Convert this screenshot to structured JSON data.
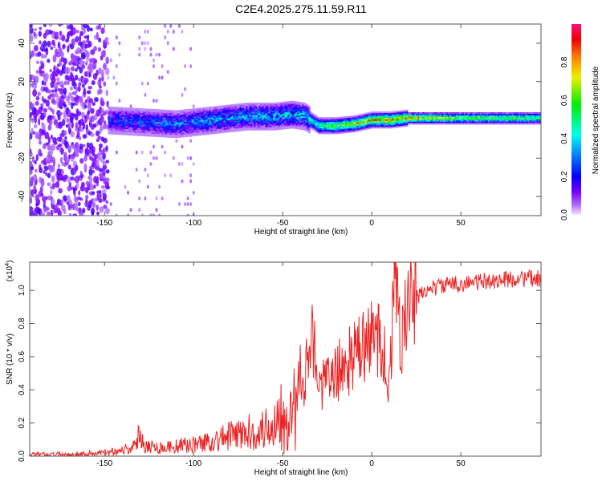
{
  "chart_data": [
    {
      "type": "heatmap",
      "title": "C2E4.2025.275.11.59.R11",
      "xlabel": "Height of straight line (km)",
      "ylabel": "Frequency (Hz)",
      "xlim": [
        -192,
        95
      ],
      "ylim": [
        -50,
        50
      ],
      "xticks": [
        "-150",
        "-100",
        "-50",
        "0",
        "50"
      ],
      "yticks": [
        "40",
        "20",
        "0",
        "-20",
        "-40"
      ],
      "colorbar": {
        "label": "Normalized spectral amplitude",
        "ticks": [
          "0.0",
          "0.2",
          "0.4",
          "0.6",
          "0.8"
        ],
        "range": [
          0,
          1
        ]
      },
      "ridge": {
        "x": [
          -148,
          -130,
          -110,
          -90,
          -70,
          -55,
          -45,
          -38,
          -30,
          -20,
          -10,
          0,
          10,
          20,
          40,
          60,
          95
        ],
        "freq": [
          0,
          -1,
          -2,
          0,
          2,
          2,
          3,
          2,
          -3,
          -3,
          -2,
          0,
          0,
          1,
          1,
          1,
          1
        ],
        "amplitude": [
          0.3,
          0.35,
          0.4,
          0.45,
          0.45,
          0.5,
          0.5,
          0.5,
          0.6,
          0.75,
          0.8,
          0.85,
          0.95,
          0.9,
          0.75,
          0.7,
          0.65
        ]
      }
    },
    {
      "type": "line",
      "xlabel": "Height of straight line (km)",
      "ylabel": "SNR (10 * v/v)",
      "yscale_label": "(x10",
      "yscale_exp": "4",
      "yscale_close": ")",
      "xlim": [
        -192,
        95
      ],
      "ylim": [
        0,
        1.17
      ],
      "xticks": [
        "-150",
        "-100",
        "-50",
        "0",
        "50"
      ],
      "yticks": [
        "0.0",
        "0.2",
        "0.4",
        "0.6",
        "0.8",
        "1.0"
      ],
      "color": "#ee2222",
      "series": [
        {
          "name": "SNR",
          "x": [
            -192,
            -170,
            -160,
            -150,
            -140,
            -132,
            -130,
            -128,
            -120,
            -110,
            -100,
            -90,
            -80,
            -70,
            -60,
            -55,
            -50,
            -45,
            -40,
            -36,
            -34,
            -30,
            -25,
            -20,
            -15,
            -10,
            -5,
            0,
            5,
            9,
            11,
            13,
            15,
            18,
            20,
            25,
            30,
            40,
            50,
            60,
            70,
            80,
            95
          ],
          "y": [
            0.01,
            0.01,
            0.015,
            0.02,
            0.04,
            0.06,
            0.18,
            0.07,
            0.05,
            0.06,
            0.07,
            0.09,
            0.12,
            0.14,
            0.16,
            0.2,
            0.3,
            0.25,
            0.35,
            0.55,
            0.9,
            0.4,
            0.45,
            0.5,
            0.55,
            0.6,
            0.65,
            0.7,
            0.75,
            0.45,
            0.6,
            1.15,
            0.8,
            0.75,
            0.9,
            0.95,
            1.0,
            1.03,
            1.04,
            1.05,
            1.06,
            1.07,
            1.07
          ]
        }
      ]
    }
  ]
}
